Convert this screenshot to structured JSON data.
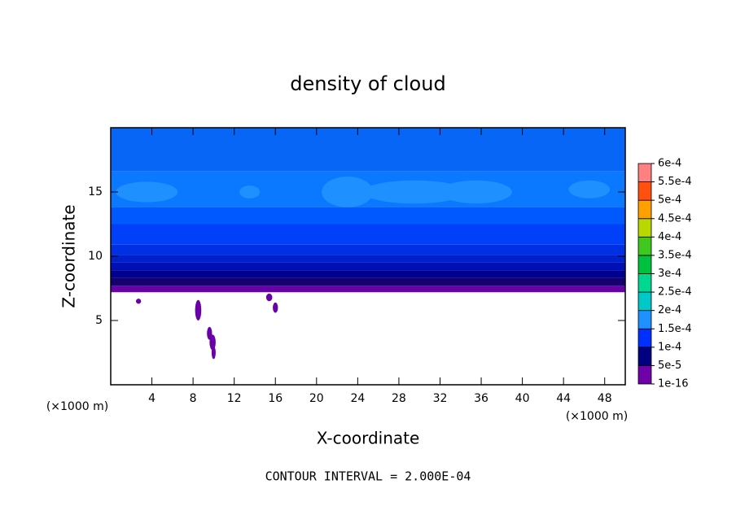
{
  "chart_data": {
    "type": "contour",
    "title": "density of cloud",
    "x_label": "X-coordinate",
    "y_label": "Z-coordinate",
    "x_unit": "(×1000 m)",
    "y_unit": "(×1000 m)",
    "footer": "CONTOUR INTERVAL = 2.000E-04",
    "xlim": [
      0,
      50
    ],
    "ylim": [
      0,
      20
    ],
    "xticks": [
      4,
      8,
      12,
      16,
      20,
      24,
      28,
      32,
      36,
      40,
      44,
      48
    ],
    "yticks": [
      5,
      10,
      15
    ],
    "layers": [
      {
        "z": [
          7.2,
          7.7
        ],
        "color": "#6a00a8"
      },
      {
        "z": [
          7.7,
          8.3
        ],
        "color": "#16006e"
      },
      {
        "z": [
          8.3,
          8.9
        ],
        "color": "#00008e"
      },
      {
        "z": [
          8.9,
          9.5
        ],
        "color": "#0010b4"
      },
      {
        "z": [
          9.5,
          10.1
        ],
        "color": "#0020cc"
      },
      {
        "z": [
          10.1,
          10.9
        ],
        "color": "#0030e4"
      },
      {
        "z": [
          10.9,
          12.5
        ],
        "color": "#0040f8"
      },
      {
        "z": [
          12.5,
          13.8
        ],
        "color": "#0058ff"
      },
      {
        "z": [
          13.8,
          16.6
        ],
        "color": "#0a78ff"
      },
      {
        "z": [
          16.6,
          20
        ],
        "color": "#0866f6"
      }
    ],
    "blobs": {
      "color": "#1e90ff",
      "x": [
        3.5,
        13.5,
        23,
        29.5,
        35.5,
        46.5
      ],
      "z": [
        15,
        15,
        15,
        15,
        15,
        15.2
      ],
      "rx": [
        3,
        1,
        2.5,
        5,
        3.5,
        2
      ],
      "rz": [
        0.8,
        0.5,
        1.2,
        0.9,
        0.9,
        0.7
      ]
    },
    "spots": {
      "color": "#6a00a8",
      "x": [
        2.7,
        8.5,
        9.6,
        9.9,
        10.0,
        16.0,
        15.4
      ],
      "z": [
        6.5,
        5.8,
        4.0,
        3.3,
        2.5,
        6.0,
        6.8
      ],
      "rx": [
        0.25,
        0.3,
        0.25,
        0.3,
        0.2,
        0.25,
        0.3
      ],
      "rz": [
        0.2,
        0.8,
        0.5,
        0.6,
        0.5,
        0.4,
        0.3
      ]
    },
    "colorbar": {
      "ticks": [
        {
          "value": 1e-16,
          "label": "1e-16"
        },
        {
          "value": 5e-05,
          "label": "5e-5"
        },
        {
          "value": 0.0001,
          "label": "1e-4"
        },
        {
          "value": 0.00015,
          "label": "1.5e-4"
        },
        {
          "value": 0.0002,
          "label": "2e-4"
        },
        {
          "value": 0.00025,
          "label": "2.5e-4"
        },
        {
          "value": 0.0003,
          "label": "3e-4"
        },
        {
          "value": 0.00035,
          "label": "3.5e-4"
        },
        {
          "value": 0.0004,
          "label": "4e-4"
        },
        {
          "value": 0.00045,
          "label": "4.5e-4"
        },
        {
          "value": 0.0005,
          "label": "5e-4"
        },
        {
          "value": 0.00055,
          "label": "5.5e-4"
        },
        {
          "value": 0.0006,
          "label": "6e-4"
        }
      ],
      "colors": [
        "#7000a8",
        "#000080",
        "#0030ff",
        "#1e90ff",
        "#00c8c8",
        "#00d890",
        "#00c040",
        "#40c820",
        "#b8d800",
        "#ffa000",
        "#ff5010",
        "#ff2020"
      ],
      "top_color": "#ff8080"
    }
  }
}
